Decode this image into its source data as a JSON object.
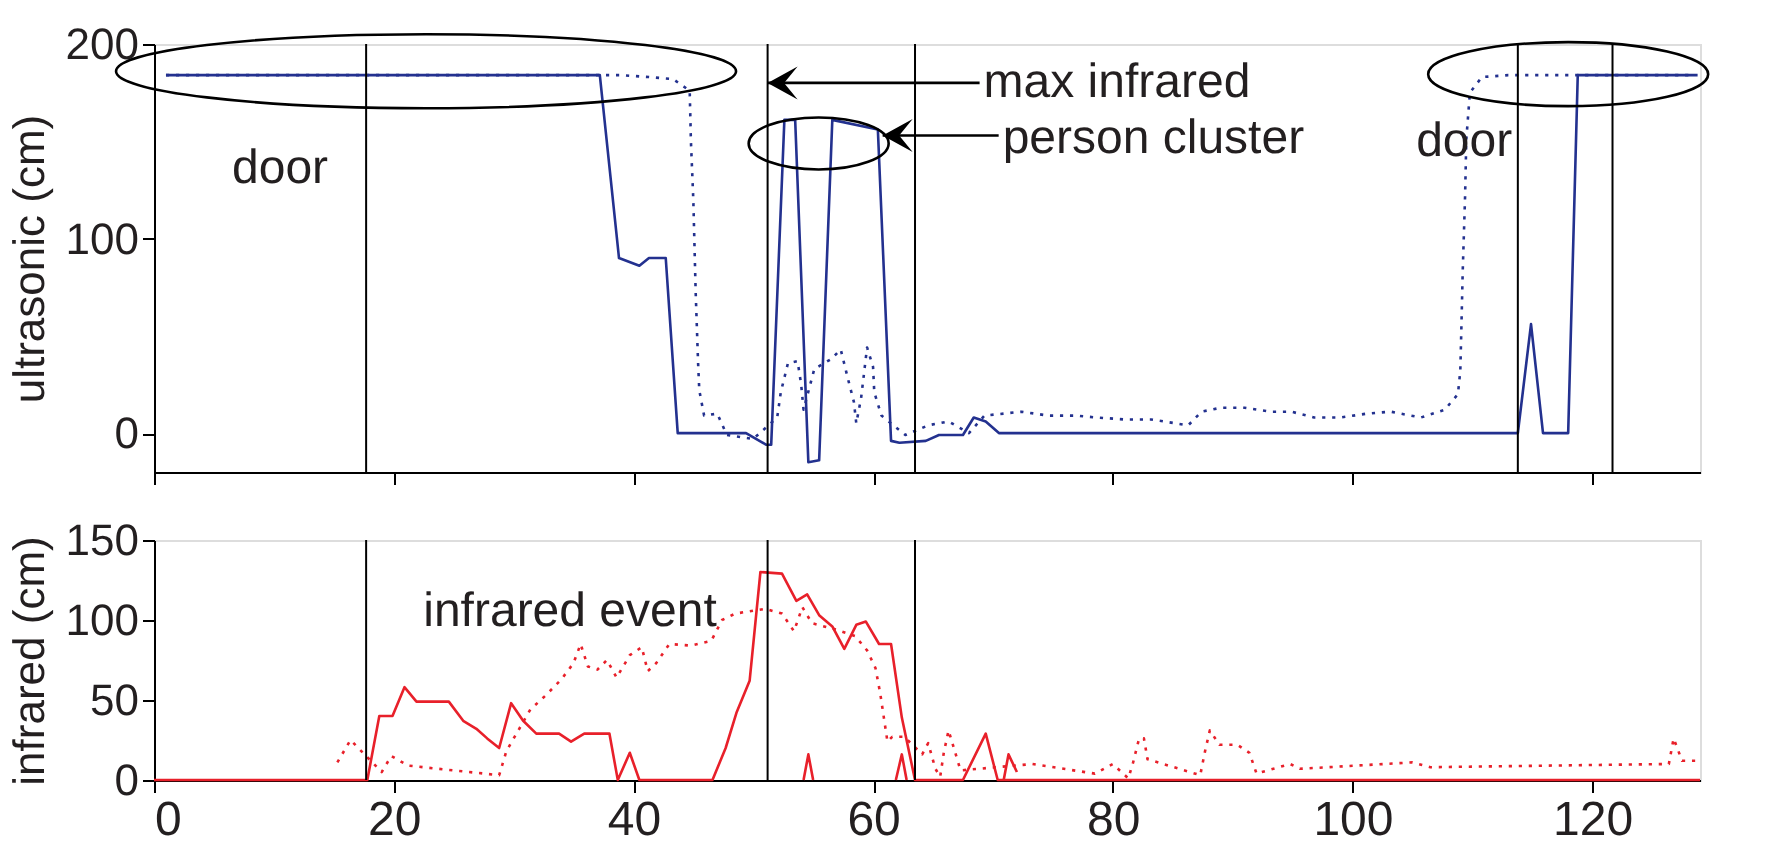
{
  "chart_data": [
    {
      "type": "line",
      "ylabel": "ultrasonic (cm)",
      "xlim": [
        0,
        129
      ],
      "xticks": [
        0,
        20,
        40,
        60,
        80,
        100,
        120
      ],
      "ylim": [
        -20,
        200
      ],
      "yticks": [
        0,
        100,
        200
      ],
      "tick_labels": "y",
      "series": [
        {
          "color": "#23318f",
          "line_style": "solid",
          "x": [
            1.0,
            37.2,
            38.8,
            40.5,
            41.3,
            42.7,
            43.7,
            49.4,
            51.1,
            51.5,
            52.6,
            53.5,
            54.6,
            55.5,
            56.6,
            60.4,
            61.5,
            62.2,
            64.4,
            65.5,
            67.5,
            68.4,
            69.4,
            70.5,
            113.8,
            114.9,
            115.9,
            118.0,
            118.8,
            128.8
          ],
          "values": [
            184,
            184,
            90,
            86,
            90,
            90,
            0,
            0,
            -6,
            -6,
            161,
            161,
            -15,
            -14,
            161,
            156,
            -4,
            -5,
            -4,
            -1,
            -1,
            8,
            6,
            0,
            0,
            56,
            0,
            0,
            184,
            184
          ]
        },
        {
          "color": "#23318f",
          "line_style": "dotted",
          "x": [
            1.0,
            37.0,
            39.0,
            41.3,
            43.3,
            44.7,
            44.8,
            45.0,
            45.2,
            45.4,
            45.5,
            45.9,
            47.0,
            47.8,
            50.0,
            52.0,
            52.3,
            52.9,
            53.7,
            54.0,
            54.2,
            55.1,
            56.5,
            57.3,
            57.9,
            58.4,
            58.6,
            59.0,
            59.5,
            60.0,
            60.1,
            60.7,
            62.7,
            64.6,
            66.3,
            68.0,
            69.3,
            72.4,
            74.6,
            76.8,
            78.7,
            81.0,
            83.2,
            86.3,
            87.4,
            89.0,
            91.0,
            93.2,
            94.9,
            96.8,
            99.0,
            101.2,
            103.2,
            105.7,
            107.7,
            108.8,
            109.0,
            109.1,
            109.2,
            109.4,
            109.5,
            109.8,
            110.8,
            113.0,
            115.2,
            117.4,
            119.6,
            121.8,
            124.0,
            126.2,
            128.2
          ],
          "values": [
            184,
            184,
            184,
            183,
            182,
            176,
            150,
            120,
            72,
            36,
            22,
            9,
            10,
            -1,
            -3,
            8,
            21,
            36,
            37,
            25,
            12,
            33,
            38,
            43,
            28,
            16,
            5,
            18,
            44,
            34,
            21,
            9,
            -1,
            4,
            6,
            0,
            9,
            11,
            9,
            9,
            8,
            7,
            7,
            4,
            11,
            13,
            13,
            11,
            11,
            8,
            8,
            10,
            11,
            8,
            12,
            20,
            32,
            57,
            83,
            122,
            151,
            175,
            183,
            184,
            184,
            184,
            184,
            184,
            184,
            184,
            184
          ]
        }
      ],
      "ref_lines": [
        {
          "axis": "x",
          "value": 17.7
        },
        {
          "axis": "x",
          "value": 51.2
        },
        {
          "axis": "x",
          "value": 63.5
        },
        {
          "axis": "x",
          "value": 113.8
        },
        {
          "axis": "x",
          "value": 121.7
        }
      ],
      "annotations": [
        {
          "text": "door",
          "x": 22.7,
          "y": 186
        },
        {
          "text": "max infrared",
          "x": 51.2,
          "y": 180
        },
        {
          "text": "person cluster",
          "x": 60.8,
          "y": 153
        },
        {
          "text": "door",
          "x": 118,
          "y": 184.5
        }
      ]
    },
    {
      "type": "line",
      "ylabel": "infrared (cm)",
      "xlim": [
        0,
        129
      ],
      "xticks": [
        0,
        20,
        40,
        60,
        80,
        100,
        120
      ],
      "ylim": [
        0,
        150
      ],
      "yticks": [
        0,
        50,
        100,
        150
      ],
      "series": [
        {
          "color": "#e8202a",
          "line_style": "solid",
          "x": [
            0,
            17.8,
            18.8,
            19.9,
            20.9,
            21.9,
            24.6,
            25.8,
            26.9,
            27.8,
            28.8,
            29.8,
            30.8,
            31.9,
            33.8,
            34.8,
            35.9,
            38.0,
            38.7,
            39.7,
            40.5,
            46.6,
            47.7,
            48.6,
            49.7,
            50.6,
            52.4,
            53.6,
            54.5,
            55.5,
            56.6,
            57.6,
            58.6,
            59.4,
            60.5,
            61.5,
            62.4,
            63.5,
            67.5,
            69.4,
            70.4,
            129
          ],
          "values": [
            0,
            0,
            40,
            40,
            58,
            49,
            49,
            37,
            32,
            26,
            20,
            48,
            37,
            29,
            29,
            24,
            29,
            29,
            0,
            17,
            0,
            0,
            20,
            42,
            62,
            130,
            129,
            112,
            116,
            103,
            96,
            82,
            97,
            99,
            85,
            85,
            39,
            0,
            0,
            29,
            0,
            0
          ]
        },
        {
          "color": "#e8202a",
          "line_style": "solid",
          "x": [
            54.2,
            54.6,
            55.0,
            58.0,
            61.9,
            62.4,
            62.8,
            66.0,
            70.9,
            71.3,
            72.0
          ],
          "values": [
            0,
            16,
            0,
            null,
            0,
            16,
            0,
            null,
            0,
            16,
            5
          ]
        },
        {
          "color": "#e8202a",
          "line_style": "dotted",
          "x": [
            15.3,
            16.4,
            19.0,
            19.8,
            21.2,
            28.8,
            29.4,
            30.4,
            31.4,
            32.7,
            34.0,
            35.0,
            35.6,
            36.2,
            37.0,
            37.8,
            38.6,
            39.7,
            40.7,
            41.2,
            41.9,
            43.0,
            44.8,
            46.5,
            47.4,
            48.5,
            51.0,
            52.4,
            53.4,
            54.1,
            54.9,
            56.9,
            58.5,
            59.5,
            60.2,
            60.6,
            60.9,
            61.2,
            61.6,
            62.6,
            64.1,
            64.6,
            65.2,
            65.6,
            65.9,
            66.3,
            66.7,
            67.3,
            73.3,
            78.5,
            80.0,
            81.3,
            81.7,
            82.2,
            82.6,
            82.9,
            87.3,
            87.7,
            88.1,
            88.9,
            90.4,
            91.4,
            92.0,
            94.8,
            95.6,
            105.0,
            106.5,
            126.4,
            126.8,
            127.5,
            128.6
          ],
          "values": [
            11,
            25,
            5,
            15,
            9,
            3,
            18,
            31,
            44,
            53,
            63,
            73,
            85,
            71,
            69,
            75,
            64,
            78,
            83,
            68,
            73,
            85,
            84,
            87,
            100,
            104,
            107,
            104,
            93,
            108,
            98,
            94,
            90,
            81,
            70,
            54,
            39,
            24,
            27,
            27,
            16,
            23,
            7,
            2,
            17,
            31,
            21,
            6,
            10,
            4,
            10,
            1,
            11,
            26,
            26,
            13,
            3,
            18,
            31,
            22,
            22,
            17,
            4,
            10,
            7,
            11,
            8,
            10,
            26,
            12,
            12
          ]
        }
      ],
      "ref_lines": [
        {
          "axis": "x",
          "value": 17.7
        },
        {
          "axis": "x",
          "value": 51.2
        },
        {
          "axis": "x",
          "value": 63.5
        }
      ],
      "annotations": [
        "infrared event"
      ]
    }
  ]
}
